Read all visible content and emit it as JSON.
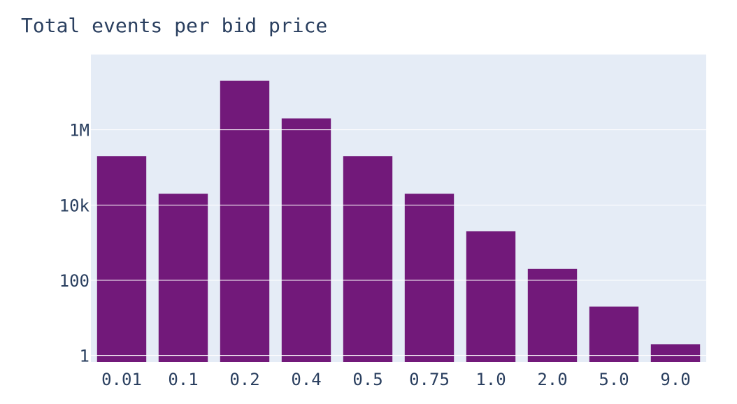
{
  "chart_data": {
    "type": "bar",
    "title": "Total events per bid price",
    "xlabel": "",
    "ylabel": "",
    "categories": [
      "0.01",
      "0.1",
      "0.2",
      "0.4",
      "0.5",
      "0.75",
      "1.0",
      "2.0",
      "5.0",
      "9.0"
    ],
    "values": [
      200000,
      20000,
      20000000,
      2000000,
      200000,
      20000,
      2000,
      200,
      20,
      2
    ],
    "y_scale": "log",
    "ylim": [
      0.67,
      100000000
    ],
    "y_ticks": [
      1,
      100,
      10000,
      1000000
    ],
    "y_tick_labels": [
      "1",
      "100",
      "10k",
      "1M"
    ],
    "grid": true,
    "bar_color": "#72197a",
    "plot_bg_color": "#e5ecf6",
    "grid_color": "#ffffff"
  }
}
